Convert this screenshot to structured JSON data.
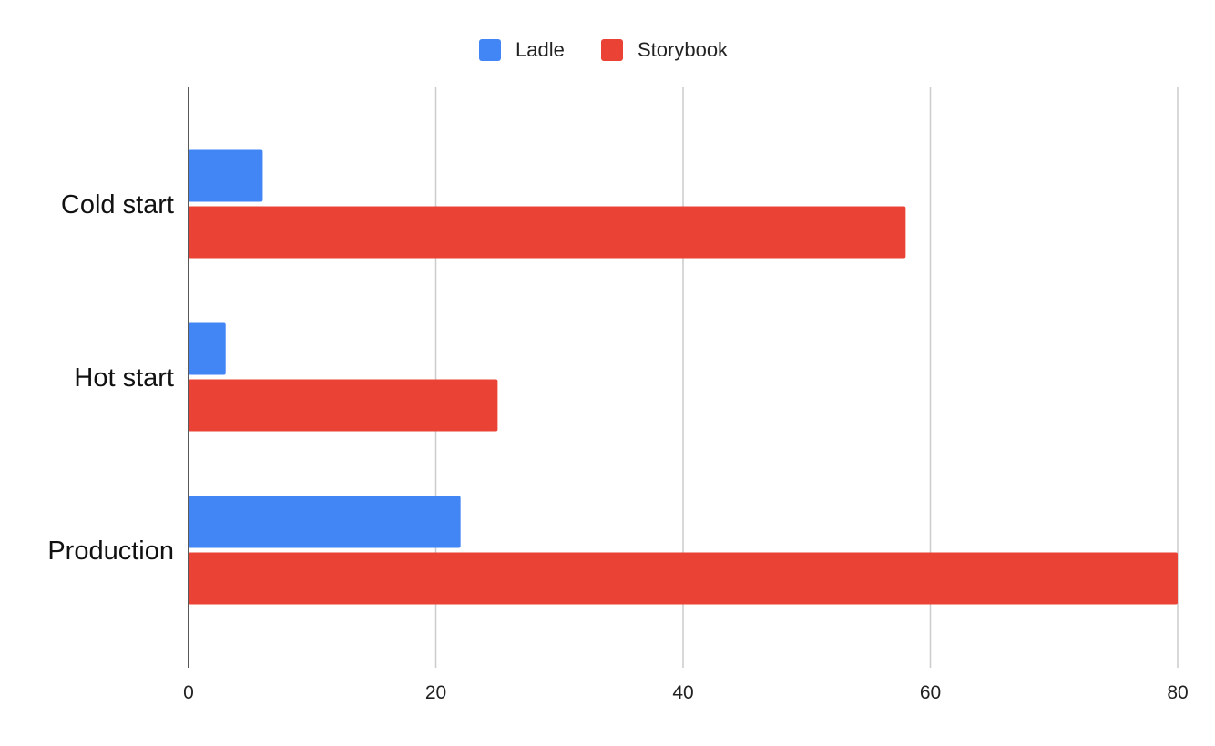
{
  "chart_data": {
    "type": "bar",
    "orientation": "horizontal",
    "title": "",
    "xlabel": "",
    "ylabel": "",
    "categories": [
      "Cold start",
      "Hot start",
      "Production"
    ],
    "series": [
      {
        "name": "Ladle",
        "color": "#4285f4",
        "values": [
          6,
          3,
          22
        ]
      },
      {
        "name": "Storybook",
        "color": "#ea4335",
        "values": [
          58,
          25,
          80
        ]
      }
    ],
    "xlim": [
      0,
      80
    ],
    "xticks": [
      "0",
      "20",
      "40",
      "60",
      "80"
    ],
    "grid": "vertical",
    "legend_position": "top-center"
  }
}
